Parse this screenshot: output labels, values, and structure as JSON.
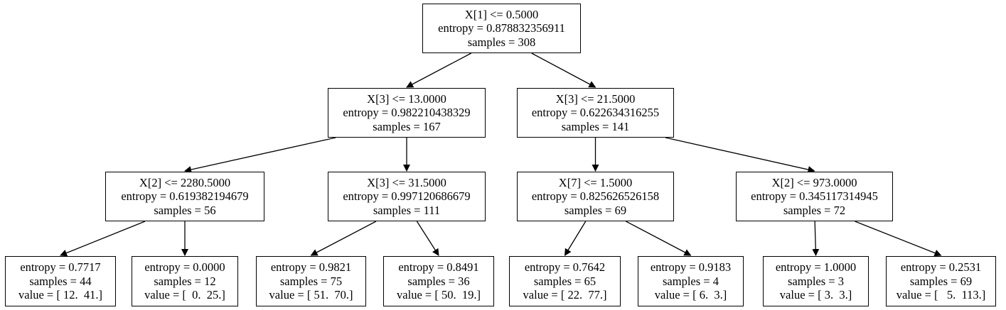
{
  "tree": {
    "nodes": [
      {
        "id": "n0",
        "lines": [
          "X[1] <= 0.5000",
          "entropy = 0.878832356911",
          "samples = 308"
        ]
      },
      {
        "id": "n1",
        "lines": [
          "X[3] <= 13.0000",
          "entropy = 0.982210438329",
          "samples = 167"
        ]
      },
      {
        "id": "n2",
        "lines": [
          "X[3] <= 21.5000",
          "entropy = 0.622634316255",
          "samples = 141"
        ]
      },
      {
        "id": "n3",
        "lines": [
          "X[2] <= 2280.5000",
          "entropy = 0.619382194679",
          "samples = 56"
        ]
      },
      {
        "id": "n4",
        "lines": [
          "X[3] <= 31.5000",
          "entropy = 0.997120686679",
          "samples = 111"
        ]
      },
      {
        "id": "n5",
        "lines": [
          "X[7] <= 1.5000",
          "entropy = 0.825626526158",
          "samples = 69"
        ]
      },
      {
        "id": "n6",
        "lines": [
          "X[2] <= 973.0000",
          "entropy = 0.345117314945",
          "samples = 72"
        ]
      },
      {
        "id": "n7",
        "lines": [
          "entropy = 0.7717",
          "samples = 44",
          "value = [ 12.  41.]"
        ]
      },
      {
        "id": "n8",
        "lines": [
          "entropy = 0.0000",
          "samples = 12",
          "value = [  0.  25.]"
        ]
      },
      {
        "id": "n9",
        "lines": [
          "entropy = 0.9821",
          "samples = 75",
          "value = [ 51.  70.]"
        ]
      },
      {
        "id": "n10",
        "lines": [
          "entropy = 0.8491",
          "samples = 36",
          "value = [ 50.  19.]"
        ]
      },
      {
        "id": "n11",
        "lines": [
          "entropy = 0.7642",
          "samples = 65",
          "value = [ 22.  77.]"
        ]
      },
      {
        "id": "n12",
        "lines": [
          "entropy = 0.9183",
          "samples = 4",
          "value = [ 6.  3.]"
        ]
      },
      {
        "id": "n13",
        "lines": [
          "entropy = 1.0000",
          "samples = 3",
          "value = [ 3.  3.]"
        ]
      },
      {
        "id": "n14",
        "lines": [
          "entropy = 0.2531",
          "samples = 69",
          "value = [   5.  113.]"
        ]
      }
    ],
    "edges": [
      [
        "n0",
        "n1"
      ],
      [
        "n0",
        "n2"
      ],
      [
        "n1",
        "n3"
      ],
      [
        "n1",
        "n4"
      ],
      [
        "n2",
        "n5"
      ],
      [
        "n2",
        "n6"
      ],
      [
        "n3",
        "n7"
      ],
      [
        "n3",
        "n8"
      ],
      [
        "n4",
        "n9"
      ],
      [
        "n4",
        "n10"
      ],
      [
        "n5",
        "n11"
      ],
      [
        "n5",
        "n12"
      ],
      [
        "n6",
        "n13"
      ],
      [
        "n6",
        "n14"
      ]
    ]
  }
}
